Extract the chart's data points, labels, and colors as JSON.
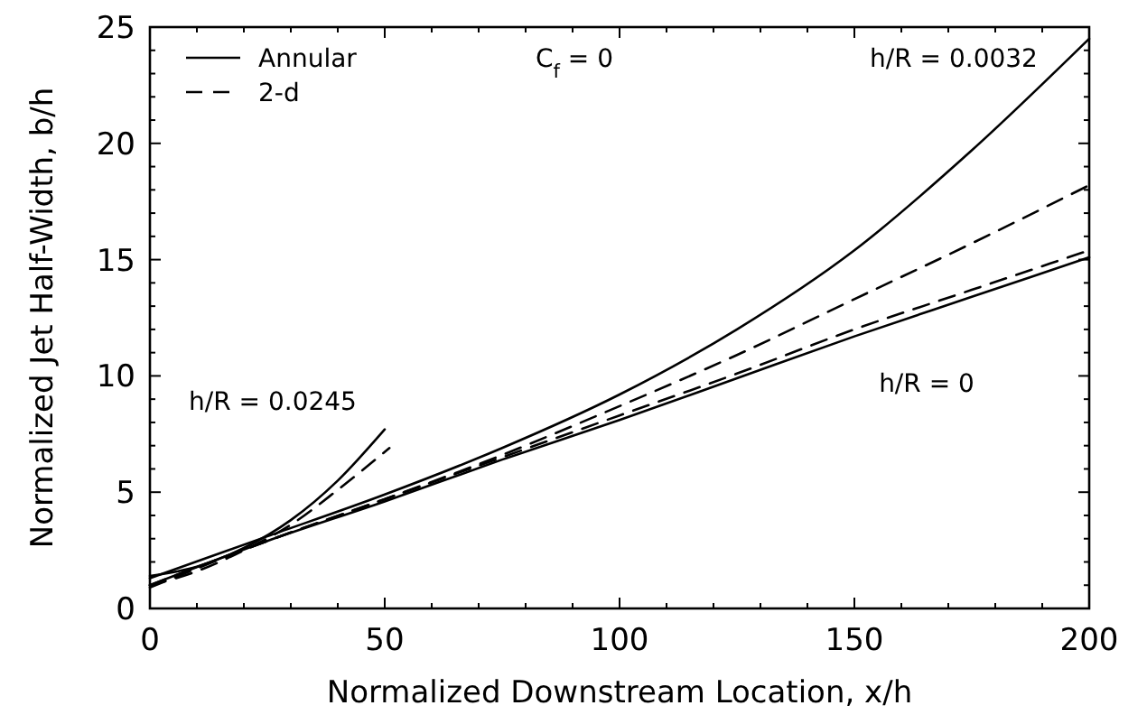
{
  "chart_data": {
    "type": "line",
    "xlabel": "Normalized Downstream Location, x/h",
    "ylabel": "Normalized Jet Half-Width, b/h",
    "xlim": [
      0,
      200
    ],
    "ylim": [
      0,
      25
    ],
    "xticks": [
      0,
      {
        "value": 10,
        "label": null
      },
      {
        "value": 20,
        "label": null
      },
      {
        "value": 30,
        "label": null
      },
      {
        "value": 40,
        "label": null
      },
      50,
      {
        "value": 60,
        "label": null
      },
      {
        "value": 70,
        "label": null
      },
      {
        "value": 80,
        "label": null
      },
      {
        "value": 90,
        "label": null
      },
      100,
      {
        "value": 110,
        "label": null
      },
      {
        "value": 120,
        "label": null
      },
      {
        "value": 130,
        "label": null
      },
      {
        "value": 140,
        "label": null
      },
      150,
      {
        "value": 160,
        "label": null
      },
      {
        "value": 170,
        "label": null
      },
      {
        "value": 180,
        "label": null
      },
      {
        "value": 190,
        "label": null
      },
      200
    ],
    "yticks": [
      0,
      {
        "value": 1,
        "label": null
      },
      {
        "value": 2,
        "label": null
      },
      {
        "value": 3,
        "label": null
      },
      {
        "value": 4,
        "label": null
      },
      5,
      {
        "value": 6,
        "label": null
      },
      {
        "value": 7,
        "label": null
      },
      {
        "value": 8,
        "label": null
      },
      {
        "value": 9,
        "label": null
      },
      10,
      {
        "value": 11,
        "label": null
      },
      {
        "value": 12,
        "label": null
      },
      {
        "value": 13,
        "label": null
      },
      {
        "value": 14,
        "label": null
      },
      15,
      {
        "value": 16,
        "label": null
      },
      {
        "value": 17,
        "label": null
      },
      {
        "value": 18,
        "label": null
      },
      {
        "value": 19,
        "label": null
      },
      20,
      {
        "value": 21,
        "label": null
      },
      {
        "value": 22,
        "label": null
      },
      {
        "value": 23,
        "label": null
      },
      {
        "value": 24,
        "label": null
      },
      25
    ],
    "grid": false,
    "legend": "top left",
    "series": [
      {
        "name": "Annular",
        "color": "#000000",
        "line_style": "solid",
        "x": [
          0,
          25,
          50,
          75,
          100,
          125,
          150,
          175,
          200
        ],
        "values": [
          1.0,
          2.9,
          4.6,
          6.4,
          8.1,
          9.9,
          11.7,
          13.4,
          15.1
        ]
      },
      {
        "name": "2-d",
        "color": "#000000",
        "line_style": "dashed",
        "x": [
          0,
          25,
          50,
          75,
          100,
          125,
          150,
          175,
          200
        ],
        "values": [
          0.9,
          2.9,
          4.7,
          6.5,
          8.3,
          10.1,
          12.0,
          13.7,
          15.4
        ]
      },
      {
        "color": "#000000",
        "line_style": "solid",
        "x": [
          0,
          25,
          50,
          75,
          100,
          125,
          150,
          175,
          200
        ],
        "values": [
          1.3,
          3.1,
          4.9,
          6.9,
          9.2,
          12.0,
          15.4,
          19.7,
          24.5
        ]
      },
      {
        "color": "#000000",
        "line_style": "dashed",
        "x": [
          0,
          25,
          50,
          75,
          100,
          125,
          150,
          175,
          200
        ],
        "values": [
          1.0,
          2.9,
          4.7,
          6.6,
          8.7,
          10.9,
          13.3,
          15.7,
          18.2
        ]
      },
      {
        "color": "#000000",
        "line_style": "solid",
        "x": [
          0,
          10,
          20,
          30,
          40,
          50
        ],
        "values": [
          1.4,
          1.8,
          2.6,
          3.8,
          5.5,
          7.7
        ]
      },
      {
        "color": "#000000",
        "line_style": "dashed",
        "x": [
          0,
          10,
          20,
          30,
          40,
          51
        ],
        "values": [
          1.0,
          1.6,
          2.5,
          3.6,
          5.1,
          6.9
        ]
      }
    ],
    "annotations": [
      "C$_{f}$ = 0",
      "h/R = 0.0032",
      "h/R = 0",
      "h/R = 0.0245"
    ]
  }
}
